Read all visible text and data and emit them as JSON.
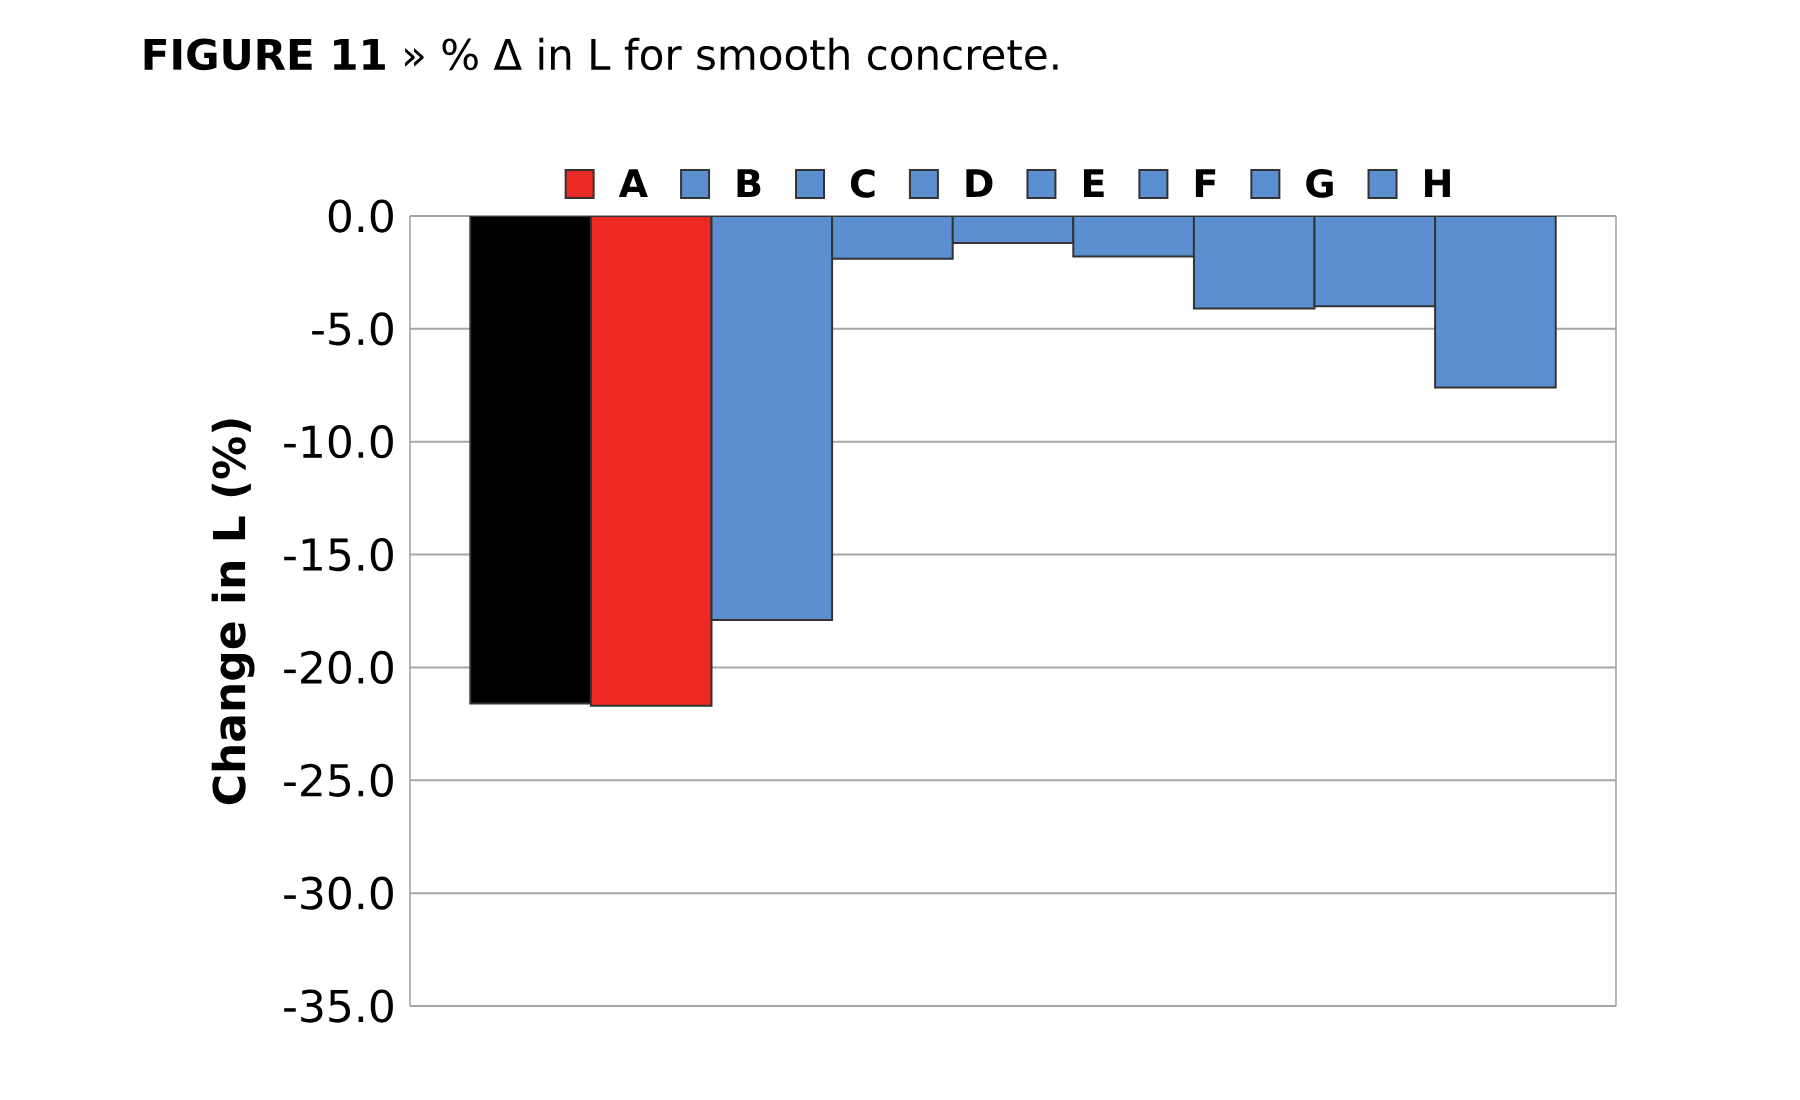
{
  "chart_data": {
    "type": "bar",
    "title": "**FIGURE 11** » % Δ in L for smooth concrete.",
    "ylabel": "Change in L (%)",
    "categories": [
      null
    ],
    "series": [
      {
        "color": "#000000",
        "values": [
          -21.6
        ]
      },
      {
        "name": "A",
        "color": "#ee2a24",
        "values": [
          -21.7
        ]
      },
      {
        "name": "B",
        "color": "#5b8fcf",
        "values": [
          -17.9
        ]
      },
      {
        "name": "C",
        "color": "#5b8fcf",
        "values": [
          -1.9
        ]
      },
      {
        "name": "D",
        "color": "#5b8fcf",
        "values": [
          -1.2
        ]
      },
      {
        "name": "E",
        "color": "#5b8fcf",
        "values": [
          -1.8
        ]
      },
      {
        "name": "F",
        "color": "#5b8fcf",
        "values": [
          -4.1
        ]
      },
      {
        "name": "G",
        "color": "#5b8fcf",
        "values": [
          -4.0
        ]
      },
      {
        "name": "H",
        "color": "#5b8fcf",
        "values": [
          -7.6
        ]
      }
    ],
    "ylim": [
      -35,
      0
    ],
    "yticks": [
      {
        "value": 0,
        "label": "0.0"
      },
      {
        "value": -5,
        "label": "-5.0"
      },
      {
        "value": -10,
        "label": "-10.0"
      },
      {
        "value": -15,
        "label": "-15.0"
      },
      {
        "value": -20,
        "label": "-20.0"
      },
      {
        "value": -25,
        "label": "-25.0"
      },
      {
        "value": -30,
        "label": "-30.0"
      },
      {
        "value": -35,
        "label": "-35.0"
      }
    ],
    "grid": "y",
    "legend": "top",
    "tick_labels": "y"
  }
}
